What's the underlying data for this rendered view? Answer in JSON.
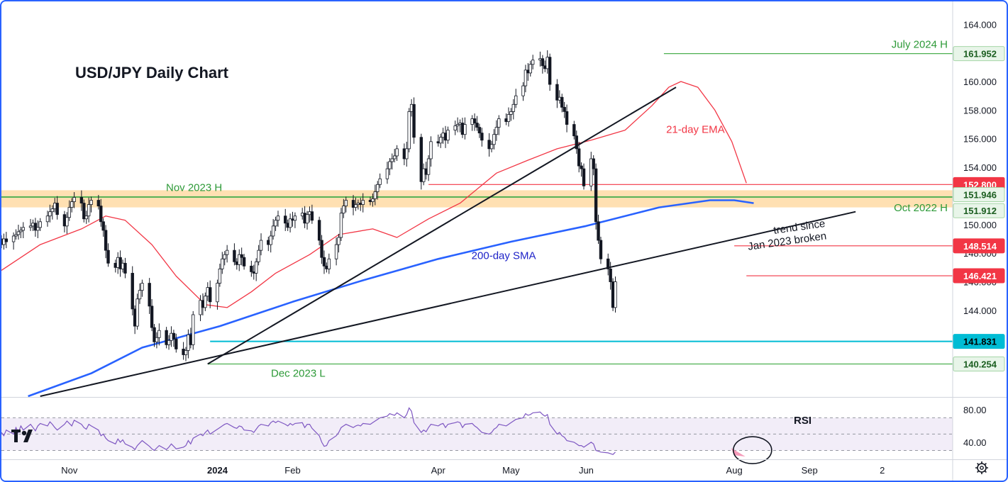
{
  "chart_data": {
    "type": "candlestick",
    "title": "USD/JPY Daily Chart",
    "price_axis": {
      "ticks": [
        "164.000",
        "162.000",
        "160.000",
        "158.000",
        "156.000",
        "154.000",
        "152.000",
        "150.000",
        "148.000",
        "146.000",
        "144.000"
      ],
      "range": [
        138.0,
        165.6
      ]
    },
    "time_axis": {
      "labels": [
        {
          "text": "Nov",
          "date": "2023-11-01"
        },
        {
          "text": "2024",
          "date": "2024-01-01",
          "bold": true
        },
        {
          "text": "Feb",
          "date": "2024-02-01"
        },
        {
          "text": "Apr",
          "date": "2024-04-01"
        },
        {
          "text": "May",
          "date": "2024-05-01"
        },
        {
          "text": "Jun",
          "date": "2024-06-01"
        },
        {
          "text": "Aug",
          "date": "2024-08-01"
        },
        {
          "text": "Sep",
          "date": "2024-09-01"
        },
        {
          "text": "2",
          "date": "2024-10-01"
        }
      ],
      "range": [
        "2023-10-04",
        "2024-10-30"
      ]
    },
    "levels": [
      {
        "label": "July 2024 H",
        "value": 161.952,
        "tag": "161.952",
        "color": "#4caf50",
        "tag_bg": "#e8f5e9",
        "tag_fg": "#1b5e20",
        "from": "2024-07-03"
      },
      {
        "label": "",
        "value": 152.8,
        "tag": "152.800",
        "color": "#f23645",
        "tag_bg": "#f23645",
        "tag_fg": "#ffffff",
        "from": "2024-03-28"
      },
      {
        "label": "Nov 2023 H",
        "value": 151.946,
        "tag": "151.946",
        "color": "#4caf50",
        "tag_bg": "#e8f5e9",
        "tag_fg": "#1b5e20",
        "from": "2023-10-04"
      },
      {
        "label": "Oct 2022 H",
        "value": 151.912,
        "tag": "151.912",
        "color": "#4caf50",
        "tag_bg": "#e8f5e9",
        "tag_fg": "#1b5e20",
        "from": "2023-10-04"
      },
      {
        "label": "",
        "value": 148.514,
        "tag": "148.514",
        "color": "#f23645",
        "tag_bg": "#f23645",
        "tag_fg": "#ffffff",
        "from": "2024-08-01"
      },
      {
        "label": "",
        "value": 146.421,
        "tag": "146.421",
        "color": "#f23645",
        "tag_bg": "#f23645",
        "tag_fg": "#ffffff",
        "from": "2024-08-06"
      },
      {
        "label": "",
        "value": 141.831,
        "tag": "141.831",
        "color": "#00bcd4",
        "tag_bg": "#00bcd4",
        "tag_fg": "#000000",
        "from": "2023-12-29"
      },
      {
        "label": "Dec 2023 L",
        "value": 140.254,
        "tag": "140.254",
        "color": "#4caf50",
        "tag_bg": "#e8f5e9",
        "tag_fg": "#1b5e20",
        "from": "2023-12-28"
      }
    ],
    "zone": {
      "from": 151.2,
      "to": 152.4,
      "color": "#ffe0b2"
    },
    "trendlines": [
      {
        "name": "steep-trendline",
        "from": {
          "date": "2023-12-28",
          "price": 140.254
        },
        "to": {
          "date": "2024-07-08",
          "price": 159.6
        }
      },
      {
        "name": "long-trendline",
        "from": {
          "date": "2023-10-20",
          "price": 138.0
        },
        "to": {
          "date": "2024-09-20",
          "price": 150.9
        }
      }
    ],
    "annotations": [
      {
        "text": "21-day EMA",
        "color": "#f23645",
        "date": "2024-07-16",
        "price": 156.4
      },
      {
        "text": "200-day SMA",
        "color": "#1e22c8",
        "date": "2024-04-28",
        "price": 147.6
      },
      {
        "text": "trend since",
        "color": "#131722",
        "date": "2024-08-28",
        "price": 149.6,
        "rotate": -8
      },
      {
        "text": "Jan 2023 broken",
        "color": "#131722",
        "date": "2024-08-23",
        "price": 148.6,
        "rotate": -8
      }
    ],
    "ema21": [
      {
        "date": "2023-10-04",
        "price": 146.8
      },
      {
        "date": "2023-10-20",
        "price": 148.6
      },
      {
        "date": "2023-11-06",
        "price": 149.7
      },
      {
        "date": "2023-11-16",
        "price": 150.6
      },
      {
        "date": "2023-11-24",
        "price": 150.3
      },
      {
        "date": "2023-12-05",
        "price": 148.6
      },
      {
        "date": "2023-12-15",
        "price": 146.4
      },
      {
        "date": "2023-12-27",
        "price": 144.4
      },
      {
        "date": "2024-01-05",
        "price": 144.2
      },
      {
        "date": "2024-01-15",
        "price": 145.3
      },
      {
        "date": "2024-01-25",
        "price": 146.6
      },
      {
        "date": "2024-02-08",
        "price": 147.9
      },
      {
        "date": "2024-02-20",
        "price": 149.3
      },
      {
        "date": "2024-03-05",
        "price": 149.7
      },
      {
        "date": "2024-03-15",
        "price": 149.1
      },
      {
        "date": "2024-03-28",
        "price": 150.4
      },
      {
        "date": "2024-04-10",
        "price": 151.5
      },
      {
        "date": "2024-04-25",
        "price": 153.6
      },
      {
        "date": "2024-05-08",
        "price": 154.5
      },
      {
        "date": "2024-05-20",
        "price": 155.3
      },
      {
        "date": "2024-06-03",
        "price": 155.9
      },
      {
        "date": "2024-06-17",
        "price": 156.6
      },
      {
        "date": "2024-06-28",
        "price": 158.3
      },
      {
        "date": "2024-07-05",
        "price": 159.6
      },
      {
        "date": "2024-07-10",
        "price": 160.0
      },
      {
        "date": "2024-07-17",
        "price": 159.6
      },
      {
        "date": "2024-07-24",
        "price": 158.0
      },
      {
        "date": "2024-07-31",
        "price": 155.8
      },
      {
        "date": "2024-08-06",
        "price": 152.9
      }
    ],
    "sma200": [
      {
        "date": "2023-10-15",
        "price": 138.0
      },
      {
        "date": "2023-11-10",
        "price": 139.6
      },
      {
        "date": "2023-12-01",
        "price": 141.4
      },
      {
        "date": "2024-01-02",
        "price": 142.9
      },
      {
        "date": "2024-02-01",
        "price": 144.6
      },
      {
        "date": "2024-03-01",
        "price": 146.1
      },
      {
        "date": "2024-04-01",
        "price": 147.6
      },
      {
        "date": "2024-05-01",
        "price": 148.8
      },
      {
        "date": "2024-06-01",
        "price": 149.9
      },
      {
        "date": "2024-07-01",
        "price": 151.2
      },
      {
        "date": "2024-07-22",
        "price": 151.7
      },
      {
        "date": "2024-08-01",
        "price": 151.7
      },
      {
        "date": "2024-08-09",
        "price": 151.5
      }
    ],
    "candles": {
      "start": "2023-10-04",
      "seed_close": 149.0,
      "note_closes": [
        148.6,
        149.0,
        148.8,
        149.2,
        149.3,
        149.5,
        149.6,
        149.8,
        149.9,
        150.1,
        149.6,
        149.8,
        150.2,
        150.6,
        150.9,
        151.1,
        151.5,
        150.7,
        149.9,
        150.5,
        151.2,
        151.6,
        151.9,
        151.5,
        150.4,
        150.6,
        151.4,
        151.7,
        151.3,
        150.2,
        149.6,
        148.2,
        147.3,
        147.0,
        147.7,
        146.9,
        147.3,
        146.6,
        144.1,
        142.9,
        144.8,
        145.4,
        145.9,
        144.3,
        142.8,
        141.8,
        142.1,
        142.6,
        141.6,
        141.9,
        142.4,
        142.0,
        141.3,
        140.9,
        141.2,
        142.3,
        141.6,
        143.7,
        144.7,
        144.2,
        145.0,
        145.6,
        144.6,
        145.9,
        146.9,
        147.6,
        147.9,
        148.2,
        147.4,
        147.2,
        147.9,
        147.7,
        147.1,
        146.7,
        146.6,
        147.4,
        148.2,
        148.9,
        148.6,
        149.2,
        149.9,
        150.3,
        150.6,
        150.1,
        149.8,
        150.4,
        150.3,
        150.6,
        150.8,
        150.1,
        150.7,
        150.9,
        150.3,
        148.9,
        147.7,
        147.1,
        146.9,
        147.6,
        148.6,
        149.1,
        150.8,
        151.3,
        151.7,
        151.2,
        151.4,
        151.5,
        151.4,
        151.7,
        151.6,
        151.8,
        152.3,
        152.8,
        153.2,
        153.9,
        154.4,
        154.6,
        154.8,
        155.3,
        154.6,
        155.3,
        157.9,
        158.4,
        156.1,
        153.0,
        153.9,
        153.5,
        154.6,
        155.8,
        155.7,
        156.1,
        156.4,
        155.9,
        156.6,
        156.9,
        157.0,
        157.1,
        156.3,
        157.0,
        157.4,
        157.1,
        156.8,
        156.4,
        155.9,
        155.3,
        155.6,
        156.3,
        156.8,
        157.4,
        157.2,
        157.7,
        157.9,
        158.4,
        159.0,
        159.7,
        160.8,
        160.6,
        161.2,
        161.5,
        161.6,
        161.1,
        160.9,
        161.7,
        159.8,
        158.7,
        158.9,
        158.2,
        157.9,
        157.0,
        156.2,
        155.3,
        154.1,
        153.9,
        152.7,
        154.6,
        153.9,
        150.2,
        148.9,
        147.6,
        146.9,
        146.0,
        144.2,
        146.0
      ]
    },
    "rsi": {
      "ticks": [
        "80.00",
        "40.00"
      ],
      "range": [
        20,
        92
      ],
      "label": "RSI",
      "overbought": 70,
      "oversold": 30,
      "mid": 50,
      "values": [
        52,
        48,
        55,
        50,
        58,
        52,
        60,
        55,
        62,
        58,
        54,
        60,
        63,
        60,
        65,
        62,
        58,
        55,
        62,
        66,
        63,
        60,
        67,
        62,
        58,
        56,
        62,
        60,
        55,
        48,
        50,
        45,
        42,
        38,
        44,
        40,
        43,
        38,
        34,
        31,
        36,
        39,
        42,
        35,
        32,
        30,
        33,
        36,
        31,
        34,
        38,
        35,
        32,
        34,
        36,
        42,
        38,
        45,
        50,
        48,
        52,
        55,
        50,
        56,
        58,
        60,
        62,
        63,
        58,
        57,
        60,
        59,
        55,
        54,
        52,
        56,
        60,
        62,
        60,
        64,
        66,
        64,
        66,
        62,
        60,
        63,
        61,
        63,
        64,
        58,
        62,
        62,
        57,
        48,
        40,
        35,
        36,
        42,
        48,
        52,
        58,
        60,
        62,
        58,
        60,
        61,
        60,
        63,
        62,
        64,
        66,
        68,
        70,
        72,
        75,
        74,
        73,
        76,
        70,
        74,
        82,
        78,
        64,
        52,
        55,
        53,
        58,
        62,
        60,
        62,
        63,
        58,
        62,
        64,
        65,
        64,
        58,
        62,
        63,
        60,
        58,
        55,
        52,
        50,
        52,
        56,
        58,
        62,
        60,
        62,
        64,
        66,
        68,
        70,
        75,
        73,
        74,
        76,
        77,
        74,
        72,
        74,
        62,
        50,
        52,
        48,
        46,
        42,
        40,
        38,
        36,
        36,
        34,
        40,
        38,
        30,
        29,
        28,
        27,
        26,
        25,
        28
      ]
    },
    "rsi_highlight": {
      "date": "2024-08-05",
      "value": 26
    }
  }
}
